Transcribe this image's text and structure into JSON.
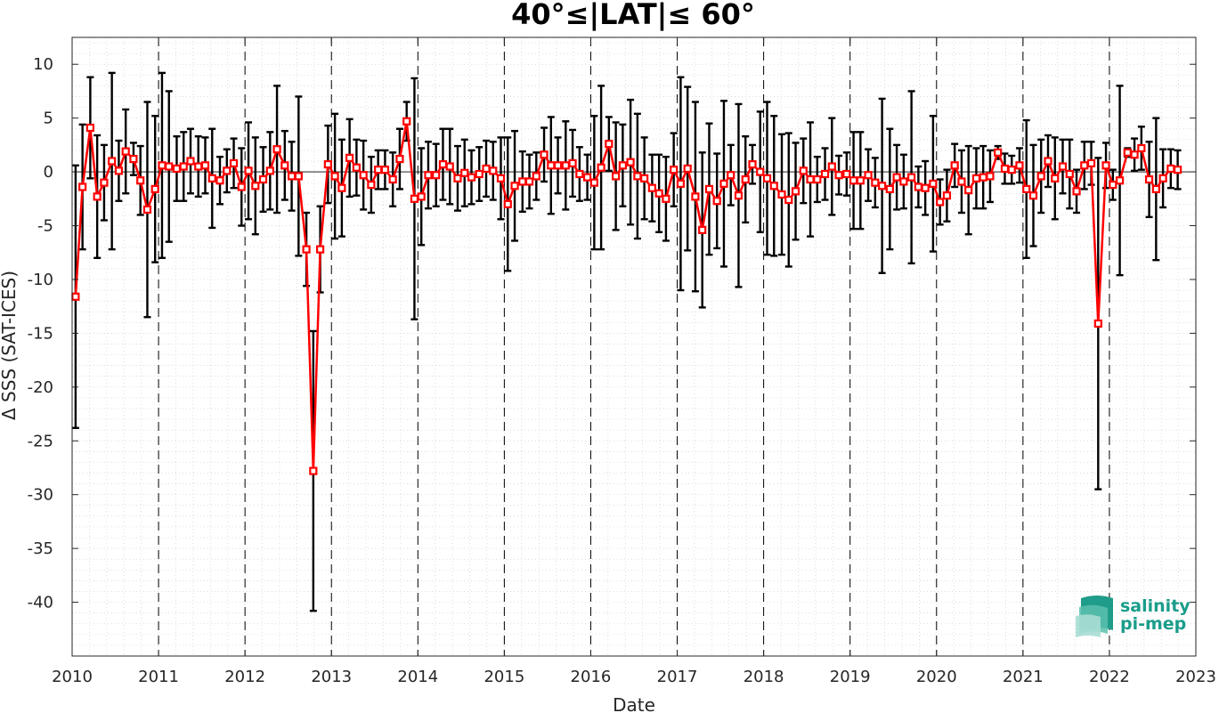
{
  "chart_data": {
    "type": "line",
    "title": "40°≤|LAT|≤ 60°",
    "xlabel": "Date",
    "ylabel": "Δ SSS (SAT-ICES)",
    "xlim": [
      2010,
      2023
    ],
    "ylim": [
      -45,
      12.5
    ],
    "xticks": [
      "2010",
      "2011",
      "2012",
      "2013",
      "2014",
      "2015",
      "2016",
      "2017",
      "2018",
      "2019",
      "2020",
      "2021",
      "2022",
      "2023"
    ],
    "yticks": [
      10,
      5,
      0,
      -5,
      -10,
      -15,
      -20,
      -25,
      -30,
      -35,
      -40
    ],
    "grid": true,
    "series": [
      {
        "color": "#ff0000",
        "errorbar_color": "#000000",
        "x": [
          2010.04,
          2010.12,
          2010.21,
          2010.29,
          2010.37,
          2010.46,
          2010.54,
          2010.62,
          2010.71,
          2010.79,
          2010.87,
          2010.96,
          2011.04,
          2011.12,
          2011.21,
          2011.29,
          2011.37,
          2011.46,
          2011.54,
          2011.62,
          2011.71,
          2011.79,
          2011.87,
          2011.96,
          2012.04,
          2012.12,
          2012.21,
          2012.29,
          2012.37,
          2012.46,
          2012.54,
          2012.62,
          2012.71,
          2012.79,
          2012.87,
          2012.96,
          2013.04,
          2013.12,
          2013.21,
          2013.29,
          2013.37,
          2013.46,
          2013.54,
          2013.62,
          2013.71,
          2013.79,
          2013.87,
          2013.96,
          2014.04,
          2014.12,
          2014.21,
          2014.29,
          2014.37,
          2014.46,
          2014.54,
          2014.62,
          2014.71,
          2014.79,
          2014.87,
          2014.96,
          2015.04,
          2015.12,
          2015.21,
          2015.29,
          2015.37,
          2015.46,
          2015.54,
          2015.62,
          2015.71,
          2015.79,
          2015.87,
          2015.96,
          2016.04,
          2016.12,
          2016.21,
          2016.29,
          2016.37,
          2016.46,
          2016.54,
          2016.62,
          2016.71,
          2016.79,
          2016.87,
          2016.96,
          2017.04,
          2017.12,
          2017.21,
          2017.29,
          2017.37,
          2017.46,
          2017.54,
          2017.62,
          2017.71,
          2017.79,
          2017.87,
          2017.96,
          2018.04,
          2018.12,
          2018.21,
          2018.29,
          2018.37,
          2018.46,
          2018.54,
          2018.62,
          2018.71,
          2018.79,
          2018.87,
          2018.96,
          2019.04,
          2019.12,
          2019.21,
          2019.29,
          2019.37,
          2019.46,
          2019.54,
          2019.62,
          2019.71,
          2019.79,
          2019.87,
          2019.96,
          2020.04,
          2020.12,
          2020.21,
          2020.29,
          2020.37,
          2020.46,
          2020.54,
          2020.62,
          2020.71,
          2020.79,
          2020.87,
          2020.96,
          2021.04,
          2021.12,
          2021.21,
          2021.29,
          2021.37,
          2021.46,
          2021.54,
          2021.62,
          2021.71,
          2021.79,
          2021.87,
          2021.96,
          2022.04,
          2022.12,
          2022.21,
          2022.29,
          2022.37,
          2022.46,
          2022.54,
          2022.62,
          2022.71,
          2022.79
        ],
        "y": [
          -11.6,
          -1.4,
          4.1,
          -2.3,
          -1.0,
          1.0,
          0.1,
          1.9,
          1.2,
          -0.8,
          -3.5,
          -1.6,
          0.6,
          0.5,
          0.3,
          0.5,
          1.0,
          0.5,
          0.6,
          -0.6,
          -0.8,
          0.1,
          0.8,
          -1.4,
          0.1,
          -1.3,
          -0.7,
          0.1,
          2.1,
          0.6,
          -0.4,
          -0.4,
          -7.2,
          -27.8,
          -7.2,
          0.7,
          -0.4,
          -1.5,
          1.3,
          0.4,
          -0.3,
          -1.2,
          0.2,
          0.2,
          -0.7,
          1.2,
          4.7,
          -2.5,
          -2.3,
          -0.3,
          -0.3,
          0.7,
          0.5,
          -0.6,
          -0.1,
          -0.5,
          -0.2,
          0.3,
          0.1,
          -0.6,
          -3.0,
          -1.3,
          -0.9,
          -0.9,
          -0.4,
          1.6,
          0.6,
          0.6,
          0.6,
          0.8,
          -0.2,
          -0.5,
          -1.0,
          0.4,
          2.6,
          -0.4,
          0.6,
          0.9,
          -0.4,
          -0.6,
          -1.5,
          -2.0,
          -2.5,
          0.2,
          -1.1,
          0.3,
          -2.3,
          -5.4,
          -1.6,
          -2.7,
          -1.1,
          -0.3,
          -2.2,
          -0.7,
          0.7,
          0.0,
          -0.6,
          -1.3,
          -2.1,
          -2.6,
          -1.8,
          0.1,
          -0.7,
          -0.7,
          -0.2,
          0.5,
          -0.3,
          -0.2,
          -0.8,
          -0.8,
          -0.3,
          -1.0,
          -1.3,
          -1.6,
          -0.5,
          -0.9,
          -0.5,
          -1.4,
          -1.5,
          -1.1,
          -2.8,
          -2.2,
          0.6,
          -0.9,
          -1.7,
          -0.6,
          -0.5,
          -0.4,
          1.8,
          0.3,
          0.2,
          0.6,
          -1.6,
          -2.2,
          -0.4,
          1.0,
          -0.6,
          0.5,
          -0.2,
          -1.8,
          0.6,
          0.8,
          -14.1,
          0.6,
          -1.2,
          -0.8,
          1.8,
          1.6,
          2.2,
          -0.7,
          -1.6,
          -0.6,
          0.3,
          0.2
        ],
        "yerr": [
          12.2,
          5.8,
          4.7,
          5.7,
          3.5,
          8.2,
          2.8,
          3.9,
          1.5,
          3.2,
          10.0,
          6.8,
          8.6,
          7.0,
          3.0,
          3.2,
          3.0,
          2.8,
          2.6,
          4.6,
          2.2,
          2.0,
          2.3,
          3.6,
          4.5,
          4.5,
          3.0,
          3.6,
          5.9,
          3.2,
          3.2,
          7.4,
          3.4,
          13.0,
          4.0,
          3.6,
          5.8,
          4.5,
          3.6,
          2.6,
          3.2,
          2.6,
          1.8,
          1.8,
          2.5,
          2.8,
          1.8,
          11.2,
          4.5,
          3.1,
          2.9,
          3.3,
          3.5,
          3.0,
          3.1,
          2.5,
          2.5,
          2.6,
          2.7,
          3.8,
          6.2,
          5.1,
          2.8,
          2.5,
          2.2,
          2.5,
          4.5,
          2.6,
          4.1,
          3.1,
          2.5,
          2.1,
          6.2,
          7.6,
          2.5,
          5.0,
          3.8,
          5.8,
          5.8,
          3.8,
          3.1,
          3.6,
          3.9,
          3.4,
          9.9,
          7.6,
          8.8,
          7.2,
          6.1,
          4.4,
          7.7,
          2.8,
          8.5,
          4.0,
          1.8,
          5.6,
          7.1,
          6.5,
          5.6,
          6.2,
          4.5,
          3.0,
          5.3,
          2.1,
          2.4,
          4.5,
          1.8,
          2.0,
          4.5,
          4.5,
          2.4,
          2.3,
          8.1,
          5.6,
          3.0,
          2.5,
          8.0,
          1.9,
          2.5,
          6.3,
          2.1,
          2.4,
          2.0,
          2.9,
          4.1,
          2.8,
          2.9,
          2.4,
          0.6,
          1.4,
          1.3,
          1.6,
          6.4,
          4.7,
          3.4,
          2.4,
          3.8,
          2.5,
          3.2,
          2.0,
          2.2,
          2.0,
          15.4,
          2.1,
          1.4,
          8.8,
          0.4,
          1.5,
          2.0,
          3.5,
          6.6,
          2.7,
          1.8,
          1.8
        ]
      }
    ],
    "logo": {
      "line1": "salinity",
      "line2": "pi-mep"
    }
  }
}
